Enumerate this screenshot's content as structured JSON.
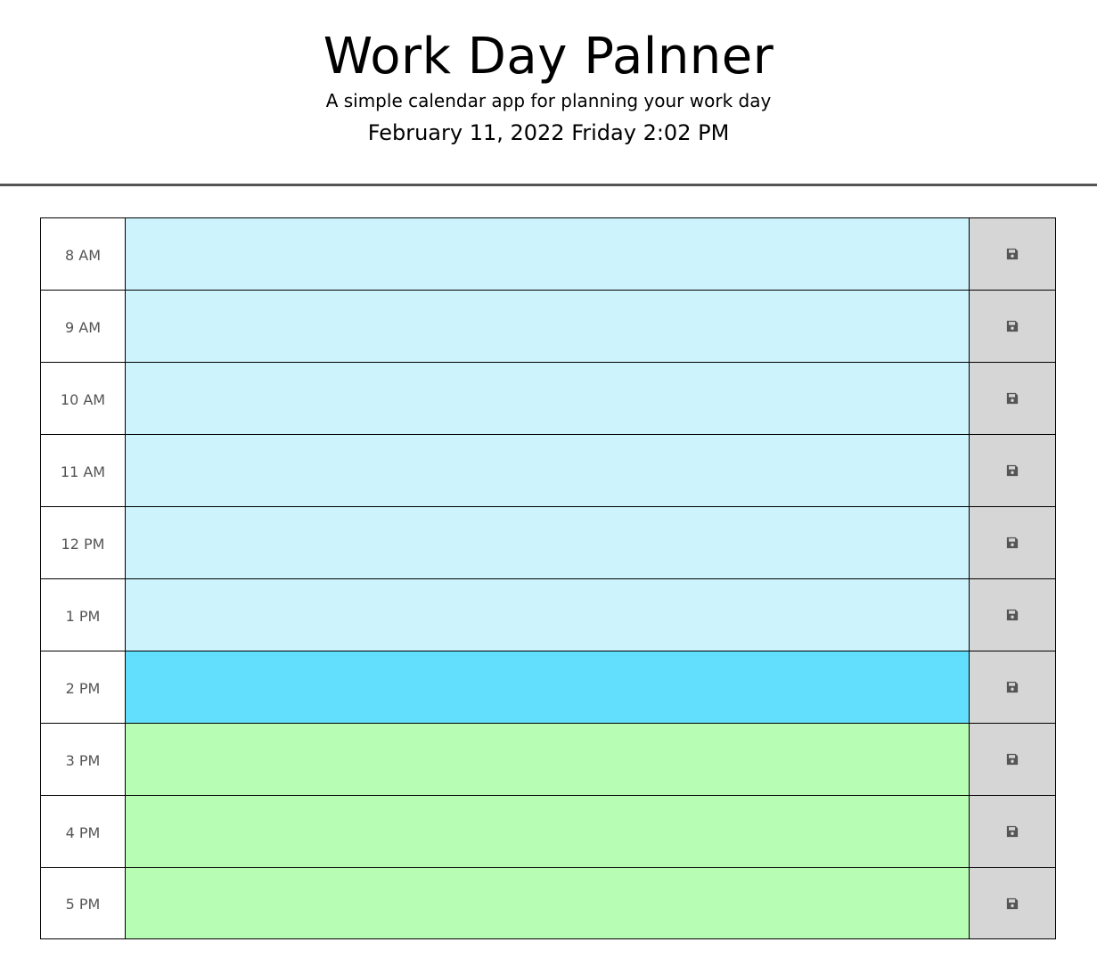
{
  "header": {
    "title": "Work Day Palnner",
    "subtitle": "A simple calendar app for planning your work day",
    "current_date": "February 11, 2022 Friday 2:02 PM"
  },
  "colors": {
    "past": "#cdf3fd",
    "present": "#63dffe",
    "future": "#b7fdb3",
    "save_button": "#d6d6d6"
  },
  "rows": [
    {
      "hour": "8 AM",
      "status": "past",
      "task": "",
      "icon": "save-icon"
    },
    {
      "hour": "9 AM",
      "status": "past",
      "task": "",
      "icon": "save-icon"
    },
    {
      "hour": "10 AM",
      "status": "past",
      "task": "",
      "icon": "save-icon"
    },
    {
      "hour": "11 AM",
      "status": "past",
      "task": "",
      "icon": "save-icon"
    },
    {
      "hour": "12 PM",
      "status": "past",
      "task": "",
      "icon": "save-icon"
    },
    {
      "hour": "1 PM",
      "status": "past",
      "task": "",
      "icon": "save-icon"
    },
    {
      "hour": "2 PM",
      "status": "present",
      "task": "",
      "icon": "save-icon"
    },
    {
      "hour": "3 PM",
      "status": "future",
      "task": "",
      "icon": "save-icon"
    },
    {
      "hour": "4 PM",
      "status": "future",
      "task": "",
      "icon": "save-icon"
    },
    {
      "hour": "5 PM",
      "status": "future",
      "task": "",
      "icon": "save-icon"
    }
  ]
}
